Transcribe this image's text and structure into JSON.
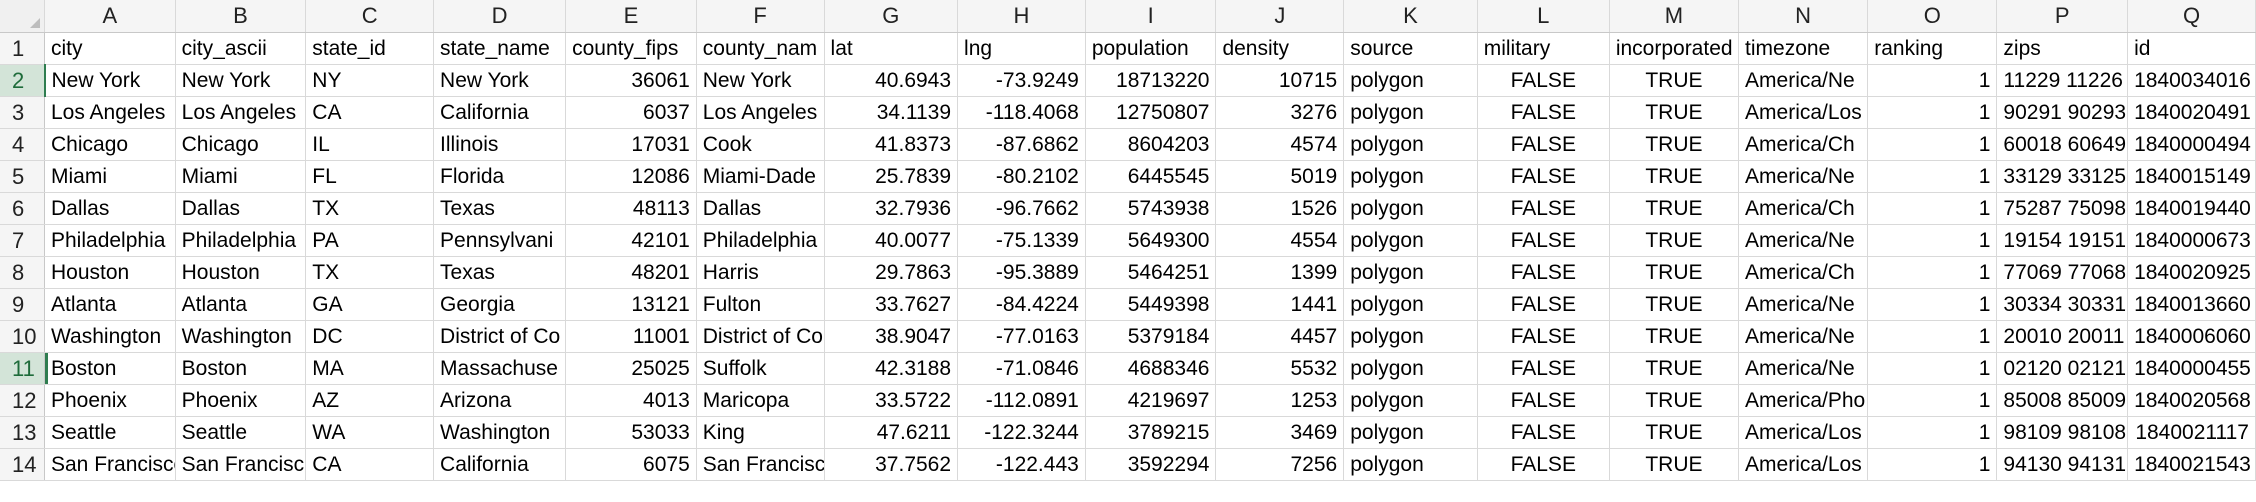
{
  "columns": [
    "A",
    "B",
    "C",
    "D",
    "E",
    "F",
    "G",
    "H",
    "I",
    "J",
    "K",
    "L",
    "M",
    "N",
    "O",
    "P",
    "Q"
  ],
  "row_numbers": [
    "1",
    "2",
    "3",
    "4",
    "5",
    "6",
    "7",
    "8",
    "9",
    "10",
    "11",
    "12",
    "13",
    "14"
  ],
  "header_row": [
    "city",
    "city_ascii",
    "state_id",
    "state_name",
    "county_fips",
    "county_nam",
    "lat",
    "lng",
    "population",
    "density",
    "source",
    "military",
    "incorporated",
    "timezone",
    "ranking",
    "zips",
    "id"
  ],
  "rows": [
    [
      "New York",
      "New York",
      "NY",
      "New York",
      "36061",
      "New York",
      "40.6943",
      "-73.9249",
      "18713220",
      "10715",
      "polygon",
      "FALSE",
      "TRUE",
      "America/Ne",
      "1",
      "11229 11226",
      "1840034016"
    ],
    [
      "Los Angeles",
      "Los Angeles",
      "CA",
      "California",
      "6037",
      "Los Angeles",
      "34.1139",
      "-118.4068",
      "12750807",
      "3276",
      "polygon",
      "FALSE",
      "TRUE",
      "America/Los",
      "1",
      "90291 90293",
      "1840020491"
    ],
    [
      "Chicago",
      "Chicago",
      "IL",
      "Illinois",
      "17031",
      "Cook",
      "41.8373",
      "-87.6862",
      "8604203",
      "4574",
      "polygon",
      "FALSE",
      "TRUE",
      "America/Ch",
      "1",
      "60018 60649",
      "1840000494"
    ],
    [
      "Miami",
      "Miami",
      "FL",
      "Florida",
      "12086",
      "Miami-Dade",
      "25.7839",
      "-80.2102",
      "6445545",
      "5019",
      "polygon",
      "FALSE",
      "TRUE",
      "America/Ne",
      "1",
      "33129 33125",
      "1840015149"
    ],
    [
      "Dallas",
      "Dallas",
      "TX",
      "Texas",
      "48113",
      "Dallas",
      "32.7936",
      "-96.7662",
      "5743938",
      "1526",
      "polygon",
      "FALSE",
      "TRUE",
      "America/Ch",
      "1",
      "75287 75098",
      "1840019440"
    ],
    [
      "Philadelphia",
      "Philadelphia",
      "PA",
      "Pennsylvani",
      "42101",
      "Philadelphia",
      "40.0077",
      "-75.1339",
      "5649300",
      "4554",
      "polygon",
      "FALSE",
      "TRUE",
      "America/Ne",
      "1",
      "19154 19151",
      "1840000673"
    ],
    [
      "Houston",
      "Houston",
      "TX",
      "Texas",
      "48201",
      "Harris",
      "29.7863",
      "-95.3889",
      "5464251",
      "1399",
      "polygon",
      "FALSE",
      "TRUE",
      "America/Ch",
      "1",
      "77069 77068",
      "1840020925"
    ],
    [
      "Atlanta",
      "Atlanta",
      "GA",
      "Georgia",
      "13121",
      "Fulton",
      "33.7627",
      "-84.4224",
      "5449398",
      "1441",
      "polygon",
      "FALSE",
      "TRUE",
      "America/Ne",
      "1",
      "30334 30331",
      "1840013660"
    ],
    [
      "Washington",
      "Washington",
      "DC",
      "District of Co",
      "11001",
      "District of Co",
      "38.9047",
      "-77.0163",
      "5379184",
      "4457",
      "polygon",
      "FALSE",
      "TRUE",
      "America/Ne",
      "1",
      "20010 20011",
      "1840006060"
    ],
    [
      "Boston",
      "Boston",
      "MA",
      "Massachuse",
      "25025",
      "Suffolk",
      "42.3188",
      "-71.0846",
      "4688346",
      "5532",
      "polygon",
      "FALSE",
      "TRUE",
      "America/Ne",
      "1",
      "02120 02121",
      "1840000455"
    ],
    [
      "Phoenix",
      "Phoenix",
      "AZ",
      "Arizona",
      "4013",
      "Maricopa",
      "33.5722",
      "-112.0891",
      "4219697",
      "1253",
      "polygon",
      "FALSE",
      "TRUE",
      "America/Pho",
      "1",
      "85008 85009",
      "1840020568"
    ],
    [
      "Seattle",
      "Seattle",
      "WA",
      "Washington",
      "53033",
      "King",
      "47.6211",
      "-122.3244",
      "3789215",
      "3469",
      "polygon",
      "FALSE",
      "TRUE",
      "America/Los",
      "1",
      "98109 98108",
      "1840021117"
    ],
    [
      "San Francisco",
      "San Francisco",
      "CA",
      "California",
      "6075",
      "San Francisco",
      "37.7562",
      "-122.443",
      "3592294",
      "7256",
      "polygon",
      "FALSE",
      "TRUE",
      "America/Los",
      "1",
      "94130 94131",
      "1840021543"
    ]
  ],
  "colors": {
    "active_row_header": "#d3e4d8",
    "active_accent": "#2e7d4f",
    "grid_line": "#d9d9d9",
    "header_bg": "#f5f5f5"
  }
}
